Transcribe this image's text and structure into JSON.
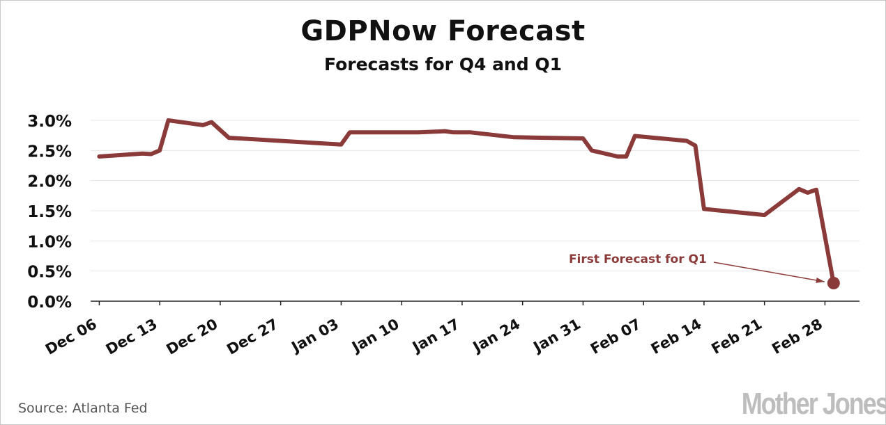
{
  "title": "GDPNow Forecast",
  "subtitle": "Forecasts for Q4 and Q1",
  "source": "Source: Atlanta Fed",
  "logo_text": "Mother Jones",
  "colors": {
    "line": "#8b3a3a",
    "annotation": "#8b3a3a",
    "grid": "#e6e6e6",
    "axis": "#222222",
    "text": "#111111"
  },
  "chart_data": {
    "type": "line",
    "title": "GDPNow Forecast",
    "subtitle": "Forecasts for Q4 and Q1",
    "xlabel": "",
    "ylabel": "",
    "ylim": [
      0,
      3.0
    ],
    "xlim": [
      "2016-12-05",
      "2017-03-04"
    ],
    "y_ticks": [
      0.0,
      0.5,
      1.0,
      1.5,
      2.0,
      2.5,
      3.0
    ],
    "y_tick_labels": [
      "0.0%",
      "0.5%",
      "1.0%",
      "1.5%",
      "2.0%",
      "2.5%",
      "3.0%"
    ],
    "x_ticks": [
      "2016-12-06",
      "2016-12-13",
      "2016-12-20",
      "2016-12-27",
      "2017-01-03",
      "2017-01-10",
      "2017-01-17",
      "2017-01-24",
      "2017-01-31",
      "2017-02-07",
      "2017-02-14",
      "2017-02-21",
      "2017-02-28"
    ],
    "x_tick_labels": [
      "Dec 06",
      "Dec 13",
      "Dec 20",
      "Dec 27",
      "Jan 03",
      "Jan 10",
      "Jan 17",
      "Jan 24",
      "Jan 31",
      "Feb 07",
      "Feb 14",
      "Feb 21",
      "Feb 28"
    ],
    "grid": "horizontal",
    "series": [
      {
        "x": [
          "2016-12-06",
          "2016-12-11",
          "2016-12-12",
          "2016-12-13",
          "2016-12-14",
          "2016-12-18",
          "2016-12-19",
          "2016-12-21",
          "2017-01-03",
          "2017-01-04",
          "2017-01-09",
          "2017-01-12",
          "2017-01-15",
          "2017-01-16",
          "2017-01-18",
          "2017-01-23",
          "2017-01-31",
          "2017-02-01",
          "2017-02-04",
          "2017-02-05",
          "2017-02-06",
          "2017-02-12",
          "2017-02-13",
          "2017-02-14",
          "2017-02-21",
          "2017-02-25",
          "2017-02-26",
          "2017-02-27",
          "2017-03-01"
        ],
        "y": [
          2.4,
          2.45,
          2.44,
          2.5,
          3.0,
          2.92,
          2.97,
          2.71,
          2.6,
          2.8,
          2.8,
          2.8,
          2.82,
          2.8,
          2.8,
          2.72,
          2.7,
          2.5,
          2.4,
          2.4,
          2.74,
          2.66,
          2.58,
          1.53,
          1.43,
          1.86,
          1.8,
          1.85,
          0.3
        ]
      }
    ],
    "annotations": [
      {
        "text": "First Forecast for Q1",
        "x": "2017-03-01",
        "y": 0.3
      }
    ]
  }
}
